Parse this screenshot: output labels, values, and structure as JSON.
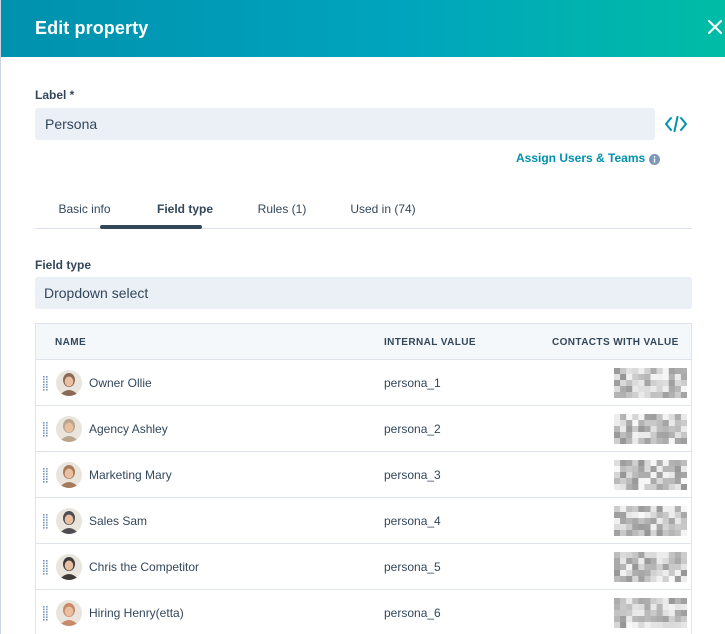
{
  "header": {
    "title": "Edit property",
    "color_start": "#0091ae",
    "color_end": "#00bda5"
  },
  "label": {
    "title": "Label *",
    "value": "Persona",
    "assign_link": "Assign Users & Teams"
  },
  "tabs": [
    {
      "label": "Basic info",
      "active": false
    },
    {
      "label": "Field type",
      "active": true
    },
    {
      "label": "Rules (1)",
      "active": false
    },
    {
      "label": "Used in (74)",
      "active": false
    }
  ],
  "field_type": {
    "label": "Field type",
    "value": "Dropdown select"
  },
  "table": {
    "headers": [
      "NAME",
      "INTERNAL VALUE",
      "CONTACTS WITH VALUE"
    ],
    "rows": [
      {
        "name": "Owner Ollie",
        "internal": "persona_1",
        "avatar_color": "#8a6a55"
      },
      {
        "name": "Agency Ashley",
        "internal": "persona_2",
        "avatar_color": "#b9a58c"
      },
      {
        "name": "Marketing Mary",
        "internal": "persona_3",
        "avatar_color": "#a67a5b"
      },
      {
        "name": "Sales Sam",
        "internal": "persona_4",
        "avatar_color": "#4d4d52"
      },
      {
        "name": "Chris the Competitor",
        "internal": "persona_5",
        "avatar_color": "#3d3b3a"
      },
      {
        "name": "Hiring Henry(etta)",
        "internal": "persona_6",
        "avatar_color": "#c98a6c"
      }
    ]
  },
  "colors": {
    "text": "#33475b",
    "link": "#0091ae",
    "input_bg": "#eaf0f6"
  }
}
